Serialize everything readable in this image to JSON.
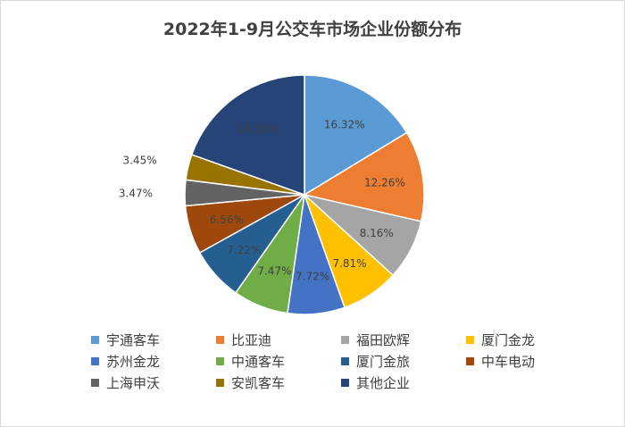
{
  "chart_data": {
    "type": "pie",
    "title": "2022年1-9月公交车市场企业份额分布",
    "slices": [
      {
        "label": "宇通客车",
        "value": 16.32,
        "display": "16.32%",
        "color": "#5b9bd5"
      },
      {
        "label": "比亚迪",
        "value": 12.26,
        "display": "12.26%",
        "color": "#ed7d31"
      },
      {
        "label": "福田欧辉",
        "value": 8.16,
        "display": "8.16%",
        "color": "#a5a5a5"
      },
      {
        "label": "厦门金龙",
        "value": 7.81,
        "display": "7.81%",
        "color": "#ffc000"
      },
      {
        "label": "苏州金龙",
        "value": 7.72,
        "display": "7.72%",
        "color": "#4472c4"
      },
      {
        "label": "中通客车",
        "value": 7.47,
        "display": "7.47%",
        "color": "#70ad47"
      },
      {
        "label": "厦门金旅",
        "value": 7.22,
        "display": "7.22%",
        "color": "#255e91"
      },
      {
        "label": "中车电动",
        "value": 6.56,
        "display": "6.56%",
        "color": "#9e480e"
      },
      {
        "label": "上海申沃",
        "value": 3.47,
        "display": "3.47%",
        "color": "#636363"
      },
      {
        "label": "安凯客车",
        "value": 3.45,
        "display": "3.45%",
        "color": "#997300"
      },
      {
        "label": "其他企业",
        "value": 19.56,
        "display": "19.56%",
        "color": "#264478"
      }
    ],
    "legend_position": "bottom"
  }
}
